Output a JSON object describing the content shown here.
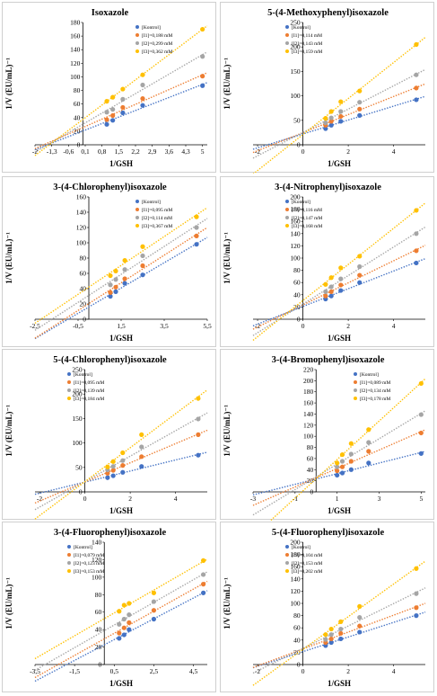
{
  "series_colors": [
    "#4472C4",
    "#ED7D31",
    "#A5A5A5",
    "#FFC000"
  ],
  "chart_data": [
    {
      "type": "scatter",
      "title": "Isoxazole",
      "xlabel": "1/GSH",
      "ylabel": "1/V (EU/mL)⁻¹",
      "xlim": [
        -2,
        5.2
      ],
      "ylim": [
        0,
        180
      ],
      "xticks": [
        -2,
        -1.3,
        -0.6,
        0.1,
        0.8,
        1.5,
        2.2,
        2.9,
        3.6,
        4.3,
        5
      ],
      "xtick_labels": [
        "-2",
        "-1,3",
        "-0,6",
        "0,1",
        "0,8",
        "1,5",
        "2,2",
        "2,9",
        "3,6",
        "4,3",
        "5"
      ],
      "yticks": [
        0,
        20,
        40,
        60,
        80,
        100,
        120,
        140,
        160,
        180
      ],
      "x": [
        1.0,
        1.25,
        1.67,
        2.5,
        5.0
      ],
      "legend_position": "top-right",
      "series": [
        {
          "name": "[Kontrol]",
          "values": [
            30,
            36,
            47,
            58,
            87
          ]
        },
        {
          "name": "[I1]=0,188 mM",
          "values": [
            37,
            43,
            55,
            68,
            101
          ]
        },
        {
          "name": "[I2]=0,299 mM",
          "values": [
            48,
            52,
            67,
            88,
            130
          ]
        },
        {
          "name": "[I3]=0,362 mM",
          "values": [
            64,
            70,
            82,
            103,
            170
          ]
        }
      ]
    },
    {
      "type": "scatter",
      "title": "5-(4-Methoxyphenyl)isoxazole",
      "xlabel": "1/GSH",
      "ylabel": "1/V (EU/mL)⁻¹",
      "xlim": [
        -2.2,
        5.4
      ],
      "ylim": [
        0,
        250
      ],
      "xticks": [
        -2,
        0,
        2,
        4
      ],
      "xtick_labels": [
        "-2",
        "0",
        "2",
        "4"
      ],
      "yticks": [
        0,
        50,
        100,
        150,
        200,
        250
      ],
      "x": [
        1.0,
        1.25,
        1.67,
        2.5,
        5.0
      ],
      "legend_position": "top-left",
      "series": [
        {
          "name": "[Kontrol]",
          "values": [
            33,
            40,
            48,
            60,
            92
          ]
        },
        {
          "name": "[I1]=0,114 mM",
          "values": [
            40,
            48,
            58,
            73,
            116
          ]
        },
        {
          "name": "[I2]=0,143 mM",
          "values": [
            45,
            55,
            68,
            87,
            143
          ]
        },
        {
          "name": "[I3]=0,159 mM",
          "values": [
            54,
            68,
            88,
            110,
            205
          ]
        }
      ]
    },
    {
      "type": "scatter",
      "title": "3-(4-Chlorophenyl)isoxazole",
      "xlabel": "1/GSH",
      "ylabel": "1/V (EU/mL)⁻¹",
      "xlim": [
        -2.5,
        5.5
      ],
      "ylim": [
        0,
        160
      ],
      "xticks": [
        -2.5,
        -0.5,
        1.5,
        3.5,
        5.5
      ],
      "xtick_labels": [
        "-2,5",
        "-0,5",
        "1,5",
        "3,5",
        "5,5"
      ],
      "yticks": [
        0,
        20,
        40,
        60,
        80,
        100,
        120,
        140,
        160
      ],
      "x": [
        1.0,
        1.25,
        1.67,
        2.5,
        5.0
      ],
      "legend_position": "top-right",
      "series": [
        {
          "name": "[Kontrol]",
          "values": [
            30,
            36,
            47,
            58,
            98
          ]
        },
        {
          "name": "[I1]=0,095 mM",
          "values": [
            35,
            42,
            53,
            70,
            109
          ]
        },
        {
          "name": "[I2]=0,114 mM",
          "values": [
            45,
            52,
            65,
            83,
            120
          ]
        },
        {
          "name": "[I3]=0,367 mM",
          "values": [
            57,
            63,
            77,
            95,
            134
          ]
        }
      ]
    },
    {
      "type": "scatter",
      "title": "3-(4-Nitrophenyl)isoxazole",
      "xlabel": "1/GSH",
      "ylabel": "1/V (EU/mL)⁻¹",
      "xlim": [
        -2.2,
        5.4
      ],
      "ylim": [
        0,
        200
      ],
      "xticks": [
        -2,
        0,
        2,
        4
      ],
      "xtick_labels": [
        "-2",
        "0",
        "2",
        "4"
      ],
      "yticks": [
        0,
        20,
        40,
        60,
        80,
        100,
        120,
        140,
        160,
        180,
        200
      ],
      "x": [
        1.0,
        1.25,
        1.67,
        2.5,
        5.0
      ],
      "legend_position": "top-left",
      "series": [
        {
          "name": "[Kontrol]",
          "values": [
            33,
            38,
            47,
            60,
            92
          ]
        },
        {
          "name": "[I1]=0,116 mM",
          "values": [
            38,
            45,
            56,
            72,
            112
          ]
        },
        {
          "name": "[I2]=0,147 mM",
          "values": [
            45,
            53,
            66,
            86,
            140
          ]
        },
        {
          "name": "[I3]=0,168 mM",
          "values": [
            57,
            68,
            84,
            103,
            178
          ]
        }
      ]
    },
    {
      "type": "scatter",
      "title": "5-(4-Chlorophenyl)isoxazole",
      "xlabel": "1/GSH",
      "ylabel": "1/V (EU/mL)⁻¹",
      "xlim": [
        -2.2,
        5.4
      ],
      "ylim": [
        0,
        250
      ],
      "xticks": [
        -2,
        0,
        2,
        4
      ],
      "xtick_labels": [
        "-2",
        "0",
        "2",
        "4"
      ],
      "yticks": [
        0,
        50,
        100,
        150,
        200,
        250
      ],
      "x": [
        1.0,
        1.25,
        1.67,
        2.5,
        5.0
      ],
      "legend_position": "top-left",
      "series": [
        {
          "name": "[Kontrol]",
          "values": [
            29,
            33,
            40,
            52,
            75
          ]
        },
        {
          "name": "[I1]=0,095 mM",
          "values": [
            38,
            44,
            54,
            72,
            117
          ]
        },
        {
          "name": "[I2]=0,139 mM",
          "values": [
            45,
            52,
            64,
            92,
            149
          ]
        },
        {
          "name": "[I3]=0,184 mM",
          "values": [
            51,
            62,
            80,
            117,
            191
          ]
        }
      ]
    },
    {
      "type": "scatter",
      "title": "3-(4-Bromophenyl)isoxazole",
      "xlabel": "1/GSH",
      "ylabel": "1/V (EU/mL)⁻¹",
      "xlim": [
        -3,
        5.2
      ],
      "ylim": [
        0,
        220
      ],
      "xticks": [
        -3,
        -1,
        1,
        3,
        5
      ],
      "xtick_labels": [
        "-3",
        "-1",
        "1",
        "3",
        "5"
      ],
      "yticks": [
        0,
        20,
        40,
        60,
        80,
        100,
        120,
        140,
        160,
        180,
        200,
        220
      ],
      "x": [
        1.0,
        1.25,
        1.67,
        2.5,
        5.0
      ],
      "legend_position": "top-right",
      "series": [
        {
          "name": "[Kontrol]",
          "values": [
            30,
            34,
            40,
            52,
            69
          ]
        },
        {
          "name": "[I1]=0,089 mM",
          "values": [
            38,
            45,
            55,
            73,
            106
          ]
        },
        {
          "name": "[I2]=0,134 mM",
          "values": [
            45,
            55,
            68,
            89,
            139
          ]
        },
        {
          "name": "[I3]=0,178 mM",
          "values": [
            52,
            67,
            87,
            112,
            195
          ]
        }
      ]
    },
    {
      "type": "scatter",
      "title": "3-(4-Fluorophenyl)isoxazole",
      "xlabel": "1/GSH",
      "ylabel": "1/V (EU/mL)⁻¹",
      "xlim": [
        -3.5,
        5.2
      ],
      "ylim": [
        0,
        140
      ],
      "xticks": [
        -3.5,
        -1.5,
        0.5,
        2.5,
        4.5
      ],
      "xtick_labels": [
        "-3,5",
        "-1,5",
        "0,5",
        "2,5",
        "4,5"
      ],
      "yticks": [
        0,
        20,
        40,
        60,
        80,
        100,
        120,
        140
      ],
      "x": [
        0.75,
        1.0,
        1.25,
        2.5,
        5.0
      ],
      "legend_position": "top-left",
      "series": [
        {
          "name": "[Kontrol]",
          "values": [
            30,
            34,
            40,
            52,
            82
          ]
        },
        {
          "name": "[I1]=0,079 mM",
          "values": [
            36,
            42,
            48,
            62,
            92
          ]
        },
        {
          "name": "[I2]=0,123 mM",
          "values": [
            46,
            52,
            57,
            72,
            103
          ]
        },
        {
          "name": "[I3]=0,153 mM",
          "values": [
            61,
            68,
            70,
            82,
            119
          ]
        }
      ]
    },
    {
      "type": "scatter",
      "title": "5-(4-Fluorophenyl)isoxazole",
      "xlabel": "1/GSH",
      "ylabel": "1/V (EU/mL)⁻¹",
      "xlim": [
        -2.2,
        5.4
      ],
      "ylim": [
        0,
        200
      ],
      "xticks": [
        -2,
        0,
        2,
        4
      ],
      "xtick_labels": [
        "-2",
        "0",
        "2",
        "4"
      ],
      "yticks": [
        0,
        20,
        40,
        60,
        80,
        100,
        120,
        140,
        160,
        180,
        200
      ],
      "x": [
        1.0,
        1.25,
        1.67,
        2.5,
        5.0
      ],
      "legend_position": "top-left",
      "series": [
        {
          "name": "[Kontrol]",
          "values": [
            31,
            36,
            42,
            53,
            80
          ]
        },
        {
          "name": "[I1]=0,104 mM",
          "values": [
            36,
            42,
            51,
            63,
            93
          ]
        },
        {
          "name": "[I2]=0,153 mM",
          "values": [
            41,
            49,
            58,
            77,
            116
          ]
        },
        {
          "name": "[I3]=0,202 mM",
          "values": [
            49,
            58,
            70,
            95,
            157
          ]
        }
      ]
    }
  ]
}
